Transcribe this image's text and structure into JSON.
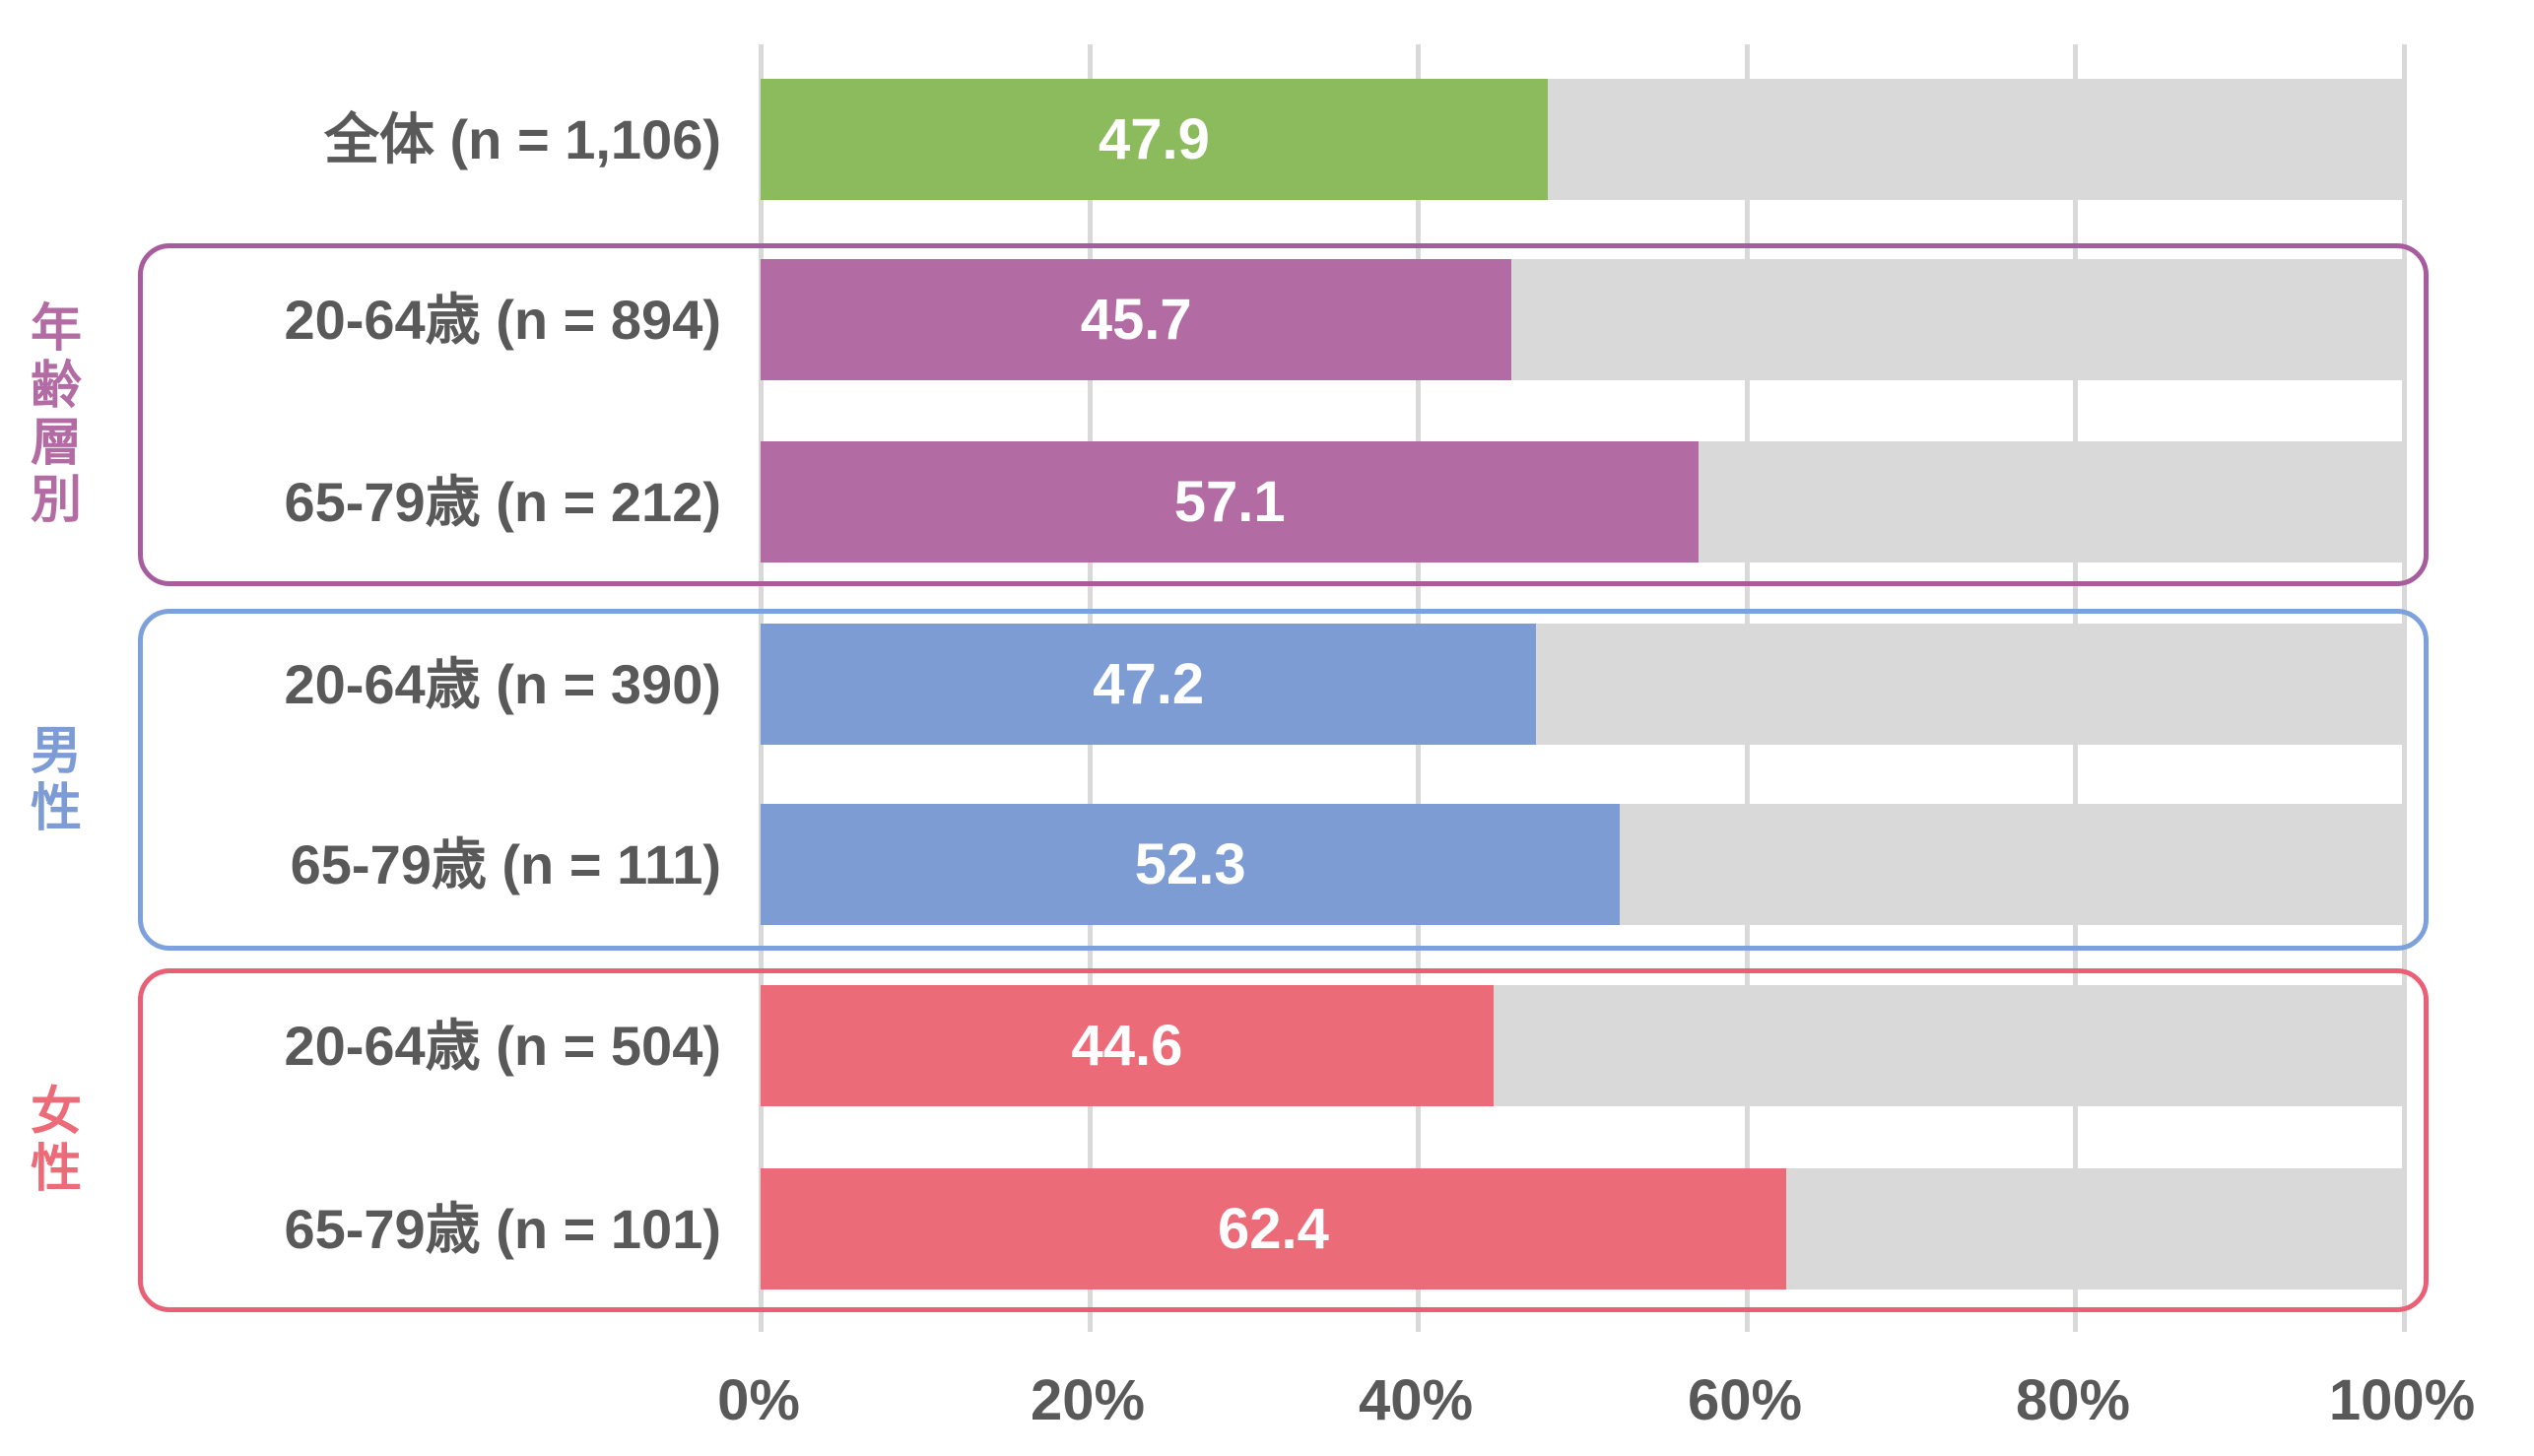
{
  "colors": {
    "green": "#8CBB5E",
    "purple": "#B36BA3",
    "purple_border": "#A75D9D",
    "blue": "#7D9CD4",
    "blue_border": "#7CA1DC",
    "red": "#EC6B78",
    "red_border": "#E95F75",
    "track": "#D9D9D9",
    "gridline": "#D9D9D9",
    "label_text": "#595959",
    "value_text": "#FFFFFF"
  },
  "chart_data": {
    "type": "bar",
    "orientation": "horizontal",
    "unit": "%",
    "xlim": [
      0,
      100
    ],
    "grid": true,
    "x_ticks": [
      "0%",
      "20%",
      "40%",
      "60%",
      "80%",
      "100%"
    ],
    "rows": [
      {
        "label": "全体 (n = 1,106)",
        "value": 47.9,
        "color_key": "green",
        "group": "全体"
      },
      {
        "label": "20-64歳 (n = 894)",
        "value": 45.7,
        "color_key": "purple",
        "group": "年齢層別"
      },
      {
        "label": "65-79歳 (n = 212)",
        "value": 57.1,
        "color_key": "purple",
        "group": "年齢層別"
      },
      {
        "label": "20-64歳 (n = 390)",
        "value": 47.2,
        "color_key": "blue",
        "group": "男性"
      },
      {
        "label": "65-79歳 (n = 111)",
        "value": 52.3,
        "color_key": "blue",
        "group": "男性"
      },
      {
        "label": "20-64歳 (n = 504)",
        "value": 44.6,
        "color_key": "red",
        "group": "女性"
      },
      {
        "label": "65-79歳 (n = 101)",
        "value": 62.4,
        "color_key": "red",
        "group": "女性"
      }
    ],
    "groups": [
      {
        "label": "年齢層別",
        "row_indices": [
          1,
          2
        ],
        "color_key": "purple",
        "border_key": "purple_border"
      },
      {
        "label": "男性",
        "row_indices": [
          3,
          4
        ],
        "color_key": "blue",
        "border_key": "blue_border"
      },
      {
        "label": "女性",
        "row_indices": [
          5,
          6
        ],
        "color_key": "red",
        "border_key": "red_border"
      }
    ]
  }
}
